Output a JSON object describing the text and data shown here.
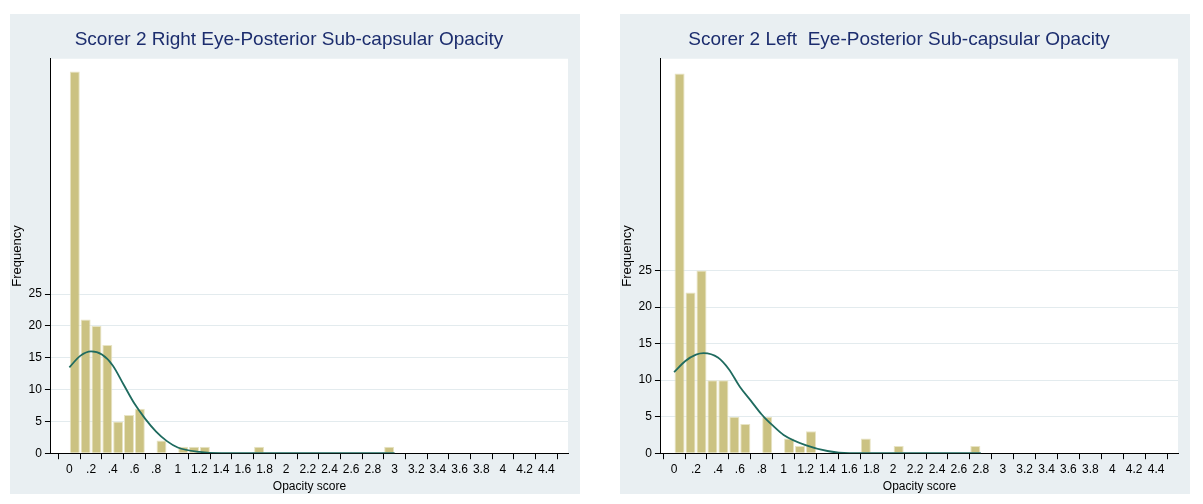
{
  "chart_data": [
    {
      "type": "histogram",
      "title": "Scorer 2 Right Eye-Posterior Sub-capsular Opacity",
      "xlabel": "Opacity score",
      "ylabel": "Frequency",
      "color": "#cbc282",
      "bins": [
        0,
        0.1,
        0.2,
        0.3,
        0.4,
        0.5,
        0.6,
        0.7,
        0.8,
        0.9,
        1.0,
        1.1,
        1.2,
        1.3,
        1.4,
        1.5,
        1.6,
        1.7,
        1.8,
        1.9,
        2.0,
        2.1,
        2.2,
        2.3,
        2.4,
        2.5,
        2.6,
        2.7,
        2.8,
        2.9,
        3.0
      ],
      "values": [
        60,
        21,
        20,
        17,
        5,
        6,
        7,
        0,
        2,
        0,
        1,
        1,
        1,
        0,
        0,
        0,
        0,
        1,
        0,
        0,
        0,
        0,
        0,
        0,
        0,
        0,
        0,
        0,
        0,
        1
      ],
      "series": [
        {
          "type": "line",
          "color": "#1f6b5f",
          "x": [
            0,
            0.1,
            0.2,
            0.3,
            0.4,
            0.5,
            0.6,
            0.7,
            0.8,
            0.9,
            1.0,
            1.2,
            1.4,
            1.6,
            2.0,
            3.0
          ],
          "values": [
            13.5,
            15.3,
            16,
            15.5,
            13.8,
            10.8,
            7.8,
            5.4,
            3.4,
            1.9,
            0.9,
            0.2,
            0,
            0,
            0,
            0
          ]
        }
      ],
      "xlim": [
        -0.17,
        4.6
      ],
      "ylim": [
        0,
        62
      ],
      "xticks": [
        0,
        {
          "value": 0.2,
          "label": ".2"
        },
        {
          "value": 0.4,
          "label": ".4"
        },
        {
          "value": 0.6,
          "label": ".6"
        },
        {
          "value": 0.8,
          "label": ".8"
        },
        1,
        1.2,
        1.4,
        1.6,
        1.8,
        2,
        2.2,
        2.4,
        2.6,
        2.8,
        3,
        3.2,
        3.4,
        3.6,
        3.8,
        4,
        4.2,
        4.4
      ],
      "yticks": [
        0,
        5,
        10,
        15,
        20,
        25
      ],
      "grid": "y"
    },
    {
      "type": "histogram",
      "title": "Scorer 2 Left  Eye-Posterior Sub-capsular Opacity",
      "xlabel": "Opacity score",
      "ylabel": "Frequency",
      "color": "#cbc282",
      "bins": [
        0,
        0.1,
        0.2,
        0.3,
        0.4,
        0.5,
        0.6,
        0.7,
        0.8,
        0.9,
        1.0,
        1.1,
        1.2,
        1.3,
        1.4,
        1.5,
        1.6,
        1.7,
        1.8,
        1.9,
        2.0,
        2.1,
        2.2,
        2.3,
        2.4,
        2.5,
        2.6,
        2.7,
        2.8
      ],
      "values": [
        52,
        22,
        25,
        10,
        10,
        5,
        4,
        0,
        5,
        0,
        2,
        1,
        3,
        0,
        0,
        0,
        0,
        2,
        0,
        0,
        1,
        0,
        0,
        0,
        0,
        0,
        0,
        1
      ],
      "series": [
        {
          "type": "line",
          "color": "#1f6b5f",
          "x": [
            0,
            0.1,
            0.2,
            0.27,
            0.4,
            0.5,
            0.6,
            0.7,
            0.8,
            0.9,
            1.0,
            1.2,
            1.4,
            1.6,
            2.0,
            2.8
          ],
          "values": [
            11.1,
            12.6,
            13.5,
            13.7,
            13.1,
            11.5,
            9.1,
            7.2,
            5.3,
            3.8,
            2.5,
            1.1,
            0.3,
            0,
            0,
            0
          ]
        }
      ],
      "xlim": [
        -0.12,
        4.6
      ],
      "ylim": [
        0,
        54
      ],
      "xticks": [
        0,
        {
          "value": 0.2,
          "label": ".2"
        },
        {
          "value": 0.4,
          "label": ".4"
        },
        {
          "value": 0.6,
          "label": ".6"
        },
        {
          "value": 0.8,
          "label": ".8"
        },
        1,
        1.2,
        1.4,
        1.6,
        1.8,
        2,
        2.2,
        2.4,
        2.6,
        2.8,
        3,
        3.2,
        3.4,
        3.6,
        3.8,
        4,
        4.2,
        4.4
      ],
      "yticks": [
        0,
        5,
        10,
        15,
        20,
        25
      ],
      "grid": "y"
    }
  ]
}
